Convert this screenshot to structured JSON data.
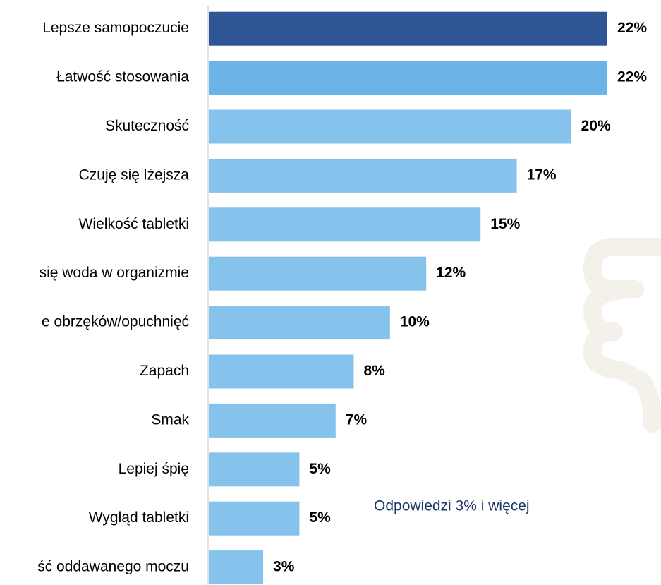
{
  "chart_data": {
    "type": "bar",
    "orientation": "horizontal",
    "categories": [
      "Lepsze samopoczucie",
      "Łatwość stosowania",
      "Skuteczność",
      "Czuję się lżejsza",
      "Wielkość tabletki",
      "się woda w organizmie",
      "e obrzęków/opuchnięć",
      "Zapach",
      "Smak",
      "Lepiej śpię",
      "Wygląd tabletki",
      "ść oddawanego moczu"
    ],
    "values": [
      22,
      22,
      20,
      17,
      15,
      12,
      10,
      8,
      7,
      5,
      5,
      3
    ],
    "value_labels": [
      "22%",
      "22%",
      "20%",
      "17%",
      "15%",
      "12%",
      "10%",
      "8%",
      "7%",
      "5%",
      "5%",
      "3%"
    ],
    "colors": [
      "#2f5597",
      "#6bb3e9",
      "#85c2ec",
      "#85c2ec",
      "#85c2ec",
      "#85c2ec",
      "#85c2ec",
      "#85c2ec",
      "#85c2ec",
      "#85c2ec",
      "#85c2ec",
      "#85c2ec"
    ],
    "annotation": "Odpowiedzi 3% i więcej"
  }
}
